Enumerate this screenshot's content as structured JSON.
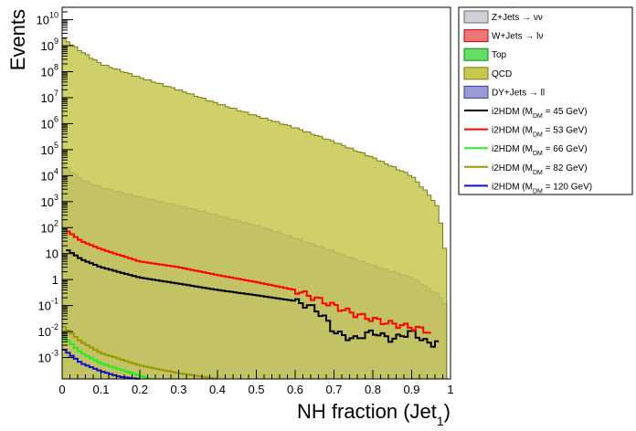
{
  "chart_data": {
    "type": "area",
    "xlabel": "NH fraction (Jet",
    "xlabel_sub": "1",
    "xlabel_close": ")",
    "ylabel": "Events",
    "xlim": [
      0,
      1
    ],
    "ylim": [
      0.00015,
      30000000000
    ],
    "yscale": "log",
    "x_ticks": [
      {
        "v": 0,
        "label": "0"
      },
      {
        "v": 0.1,
        "label": "0.1"
      },
      {
        "v": 0.2,
        "label": "0.2"
      },
      {
        "v": 0.3,
        "label": "0.3"
      },
      {
        "v": 0.4,
        "label": "0.4"
      },
      {
        "v": 0.5,
        "label": "0.5"
      },
      {
        "v": 0.6,
        "label": "0.6"
      },
      {
        "v": 0.7,
        "label": "0.7"
      },
      {
        "v": 0.8,
        "label": "0.8"
      },
      {
        "v": 0.9,
        "label": "0.9"
      },
      {
        "v": 1.0,
        "label": "1"
      }
    ],
    "y_ticks": [
      {
        "exp": -3,
        "label": "10",
        "sup": "-3"
      },
      {
        "exp": -2,
        "label": "10",
        "sup": "-2"
      },
      {
        "exp": -1,
        "label": "10",
        "sup": "-1"
      },
      {
        "exp": 0,
        "label": "1",
        "sup": ""
      },
      {
        "exp": 1,
        "label": "10",
        "sup": ""
      },
      {
        "exp": 2,
        "label": "10",
        "sup": "2"
      },
      {
        "exp": 3,
        "label": "10",
        "sup": "3"
      },
      {
        "exp": 4,
        "label": "10",
        "sup": "4"
      },
      {
        "exp": 5,
        "label": "10",
        "sup": "5"
      },
      {
        "exp": 6,
        "label": "10",
        "sup": "6"
      },
      {
        "exp": 7,
        "label": "10",
        "sup": "7"
      },
      {
        "exp": 8,
        "label": "10",
        "sup": "8"
      },
      {
        "exp": 9,
        "label": "10",
        "sup": "9"
      },
      {
        "exp": 10,
        "label": "10",
        "sup": "10"
      }
    ],
    "x": [
      0,
      0.05,
      0.1,
      0.2,
      0.3,
      0.4,
      0.5,
      0.6,
      0.7,
      0.8,
      0.9,
      0.95,
      0.97,
      0.99
    ],
    "stacks": [
      {
        "name": "DY+Jets → ll",
        "fill": "#9a9ad6",
        "stroke": "#3d3d8f",
        "values": [
          30000,
          7000,
          3500,
          1500,
          700,
          300,
          120,
          40,
          12,
          3.5,
          1.2,
          0.4,
          0.25,
          0.1
        ]
      },
      {
        "name": "QCD",
        "fill": "#c8c850",
        "stroke": "#7a7a10",
        "values": [
          2000000000,
          600000000,
          200000000,
          60000000,
          20000000,
          6000000,
          2000000,
          700000,
          200000,
          50000,
          10000,
          1500,
          500,
          5
        ]
      },
      {
        "name": "Top",
        "fill": "#66dd66",
        "stroke": "#0a8a0a",
        "values": [
          0,
          0,
          0,
          0,
          0,
          0,
          0,
          0,
          0,
          0,
          0,
          0,
          0,
          0
        ]
      },
      {
        "name": "W+Jets → lν",
        "fill": "#ee7777",
        "stroke": "#cc0000",
        "values": [
          0,
          0,
          0,
          0,
          0,
          0,
          0,
          0,
          0,
          0,
          0,
          0,
          0,
          0
        ]
      },
      {
        "name": "Z+Jets → νν",
        "fill": "#d0d0d8",
        "stroke": "#6a6a6a",
        "values": [
          0,
          0,
          0,
          0,
          0,
          0,
          0,
          0,
          0,
          0,
          0,
          0,
          0,
          0
        ]
      }
    ],
    "lines": [
      {
        "name": "i2HDM (M_DM = 45 GeV)",
        "color": "#000000",
        "x": [
          0.01,
          0.05,
          0.1,
          0.2,
          0.3,
          0.4,
          0.5,
          0.6,
          0.65,
          0.68,
          0.7,
          0.75,
          0.8,
          0.85,
          0.9,
          0.95,
          0.97
        ],
        "values": [
          15,
          6,
          3,
          1.2,
          0.7,
          0.4,
          0.25,
          0.15,
          0.08,
          0.03,
          0.01,
          0.005,
          0.01,
          0.005,
          0.01,
          0.003,
          0.005
        ]
      },
      {
        "name": "i2HDM (M_DM = 53 GeV)",
        "color": "#ff0000",
        "x": [
          0.01,
          0.05,
          0.1,
          0.2,
          0.3,
          0.4,
          0.5,
          0.6,
          0.65,
          0.7,
          0.75,
          0.8,
          0.85,
          0.9,
          0.95
        ],
        "values": [
          80,
          30,
          15,
          5,
          3,
          1.5,
          0.8,
          0.4,
          0.2,
          0.1,
          0.05,
          0.03,
          0.02,
          0.015,
          0.01
        ]
      },
      {
        "name": "i2HDM (M_DM = 66 GeV)",
        "color": "#22ee22",
        "x": [
          0.005,
          0.05,
          0.1,
          0.15,
          0.2,
          0.23
        ],
        "values": [
          0.006,
          0.0015,
          0.0006,
          0.00035,
          0.0002,
          0.00015
        ]
      },
      {
        "name": "i2HDM (M_DM = 82 GeV)",
        "color": "#999900",
        "x": [
          0.005,
          0.05,
          0.1,
          0.2,
          0.3,
          0.4
        ],
        "values": [
          0.015,
          0.004,
          0.0015,
          0.0005,
          0.00025,
          0.00015
        ]
      },
      {
        "name": "i2HDM (M_DM = 120 GeV)",
        "color": "#1010cc",
        "x": [
          0.005,
          0.05,
          0.1,
          0.15,
          0.2
        ],
        "values": [
          0.002,
          0.0006,
          0.0003,
          0.00018,
          0.00015
        ]
      }
    ],
    "legend": [
      {
        "label": "Z+Jets → νν",
        "kind": "box",
        "fill": "#d0d0d8",
        "stroke": "#6a6a6a"
      },
      {
        "label": "W+Jets → lν",
        "kind": "box",
        "fill": "#ee7777",
        "stroke": "#cc0000"
      },
      {
        "label": "Top",
        "kind": "box",
        "fill": "#66dd66",
        "stroke": "#0a8a0a"
      },
      {
        "label": "QCD",
        "kind": "box",
        "fill": "#c8c850",
        "stroke": "#7a7a10"
      },
      {
        "label": "DY+Jets → ll",
        "kind": "box",
        "fill": "#9a9ad6",
        "stroke": "#3d3d8f"
      },
      {
        "label": "i2HDM (M",
        "sub": "DM",
        "tail": " =  45 GeV)",
        "kind": "line",
        "color": "#000000"
      },
      {
        "label": "i2HDM (M",
        "sub": "DM",
        "tail": " =  53 GeV)",
        "kind": "line",
        "color": "#ff0000"
      },
      {
        "label": "i2HDM (M",
        "sub": "DM",
        "tail": " =  66 GeV)",
        "kind": "line",
        "color": "#22ee22"
      },
      {
        "label": "i2HDM (M",
        "sub": "DM",
        "tail": " =  82 GeV)",
        "kind": "line",
        "color": "#999900"
      },
      {
        "label": "i2HDM (M",
        "sub": "DM",
        "tail": " = 120 GeV)",
        "kind": "line",
        "color": "#1010cc"
      }
    ],
    "legend_position": "top-right outside",
    "grid": false
  }
}
